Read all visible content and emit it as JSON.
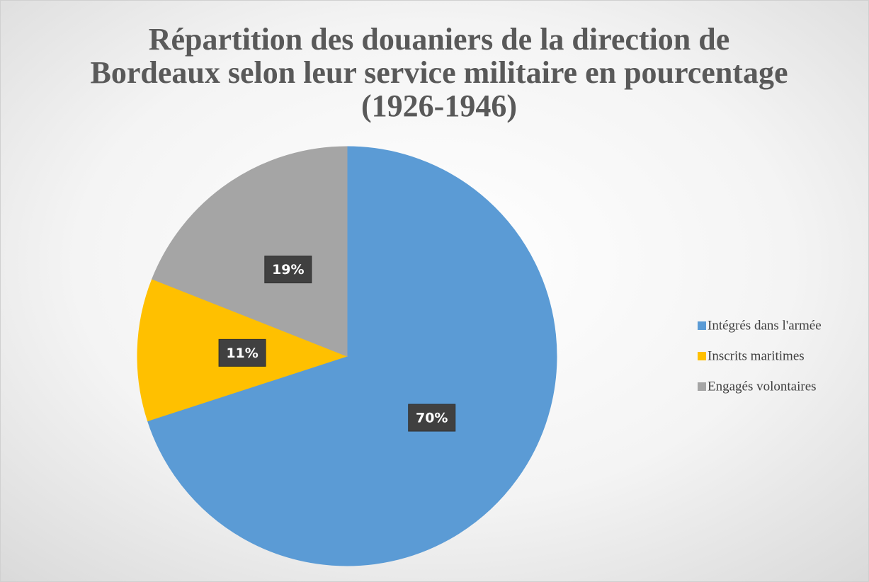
{
  "chart_data": {
    "type": "pie",
    "title": [
      "Répartition des douaniers de la direction de",
      "Bordeaux selon leur service militaire en pourcentage",
      "(1926-1946)"
    ],
    "categories": [
      "Intégrés dans l'armée",
      "Inscrits maritimes",
      "Engagés volontaires"
    ],
    "values": [
      70,
      11,
      19
    ],
    "value_labels": [
      "70%",
      "11%",
      "19%"
    ],
    "colors": [
      "#5b9bd5",
      "#ffc000",
      "#a5a5a5"
    ],
    "legend": "right"
  }
}
